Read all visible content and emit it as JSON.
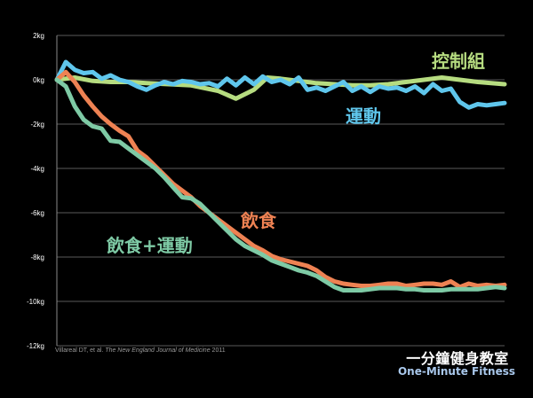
{
  "chart_data": {
    "type": "line",
    "title": "",
    "xlabel": "",
    "ylabel": "",
    "ylim": [
      -12,
      2
    ],
    "y_ticks": [
      2,
      0,
      -2,
      -4,
      -6,
      -8,
      -10,
      -12
    ],
    "y_tick_labels": [
      "2kg",
      "0kg",
      "-2kg",
      "-4kg",
      "-6kg",
      "-8kg",
      "-10kg",
      "-12kg"
    ],
    "xlim": [
      0,
      100
    ],
    "grid": true,
    "legend": "inline labels",
    "series": [
      {
        "name": "控制組",
        "color": "#b6dc80",
        "x": [
          0,
          4,
          8,
          12,
          16,
          20,
          25,
          30,
          36,
          40,
          44,
          47,
          50,
          54,
          58,
          62,
          66,
          70,
          74,
          78,
          82,
          86,
          90,
          94,
          100
        ],
        "y": [
          0,
          0.1,
          -0.05,
          -0.1,
          -0.1,
          -0.15,
          -0.2,
          -0.25,
          -0.5,
          -0.85,
          -0.45,
          0.1,
          0.05,
          -0.05,
          -0.15,
          -0.2,
          -0.25,
          -0.25,
          -0.2,
          -0.1,
          0,
          0.1,
          0,
          -0.1,
          -0.2
        ]
      },
      {
        "name": "運動",
        "color": "#5fc6ec",
        "x": [
          0,
          2,
          4,
          6,
          8,
          10,
          12,
          14,
          16,
          18,
          20,
          22,
          24,
          26,
          28,
          30,
          32,
          34,
          36,
          38,
          40,
          42,
          44,
          46,
          48,
          50,
          52,
          54,
          56,
          58,
          60,
          62,
          64,
          66,
          68,
          70,
          72,
          74,
          76,
          78,
          80,
          82,
          84,
          86,
          88,
          90,
          92,
          94,
          96,
          98,
          100
        ],
        "y": [
          0,
          0.8,
          0.45,
          0.3,
          0.35,
          0.05,
          0.2,
          0.0,
          -0.1,
          -0.3,
          -0.45,
          -0.25,
          -0.1,
          -0.2,
          -0.05,
          -0.1,
          -0.2,
          -0.15,
          -0.3,
          0.05,
          -0.25,
          0.1,
          -0.2,
          0.15,
          -0.1,
          0.0,
          -0.2,
          0.1,
          -0.45,
          -0.35,
          -0.5,
          -0.3,
          -0.1,
          -0.5,
          -0.3,
          -0.55,
          -0.3,
          -0.4,
          -0.35,
          -0.5,
          -0.3,
          -0.6,
          -0.2,
          -0.5,
          -0.4,
          -1.0,
          -1.25,
          -1.1,
          -1.15,
          -1.1,
          -1.05
        ]
      },
      {
        "name": "飲食",
        "color": "#ee8253",
        "x": [
          0,
          2,
          4,
          6,
          8,
          10,
          12,
          14,
          16,
          18,
          20,
          22,
          24,
          26,
          28,
          30,
          32,
          34,
          36,
          38,
          40,
          42,
          44,
          46,
          48,
          50,
          52,
          54,
          56,
          58,
          60,
          62,
          64,
          66,
          68,
          70,
          72,
          74,
          76,
          78,
          80,
          82,
          84,
          86,
          88,
          90,
          92,
          94,
          96,
          98,
          100
        ],
        "y": [
          0,
          0.35,
          -0.1,
          -0.7,
          -1.2,
          -1.65,
          -2.0,
          -2.3,
          -2.55,
          -3.2,
          -3.5,
          -3.9,
          -4.3,
          -4.7,
          -5.0,
          -5.3,
          -5.7,
          -6.0,
          -6.3,
          -6.6,
          -6.9,
          -7.2,
          -7.5,
          -7.7,
          -7.95,
          -8.1,
          -8.2,
          -8.3,
          -8.4,
          -8.6,
          -8.9,
          -9.1,
          -9.2,
          -9.25,
          -9.3,
          -9.3,
          -9.25,
          -9.2,
          -9.2,
          -9.3,
          -9.25,
          -9.2,
          -9.2,
          -9.25,
          -9.1,
          -9.35,
          -9.2,
          -9.3,
          -9.25,
          -9.3,
          -9.25
        ]
      },
      {
        "name": "飲食+運動",
        "color": "#7ecaa5",
        "x": [
          0,
          2,
          4,
          6,
          8,
          10,
          12,
          14,
          16,
          18,
          20,
          22,
          24,
          26,
          28,
          30,
          32,
          34,
          36,
          38,
          40,
          42,
          44,
          46,
          48,
          50,
          52,
          54,
          56,
          58,
          60,
          62,
          64,
          66,
          68,
          70,
          72,
          74,
          76,
          78,
          80,
          82,
          84,
          86,
          88,
          90,
          92,
          94,
          96,
          98,
          100
        ],
        "y": [
          0,
          -0.3,
          -1.2,
          -1.8,
          -2.1,
          -2.2,
          -2.75,
          -2.8,
          -3.1,
          -3.4,
          -3.7,
          -4.0,
          -4.4,
          -4.85,
          -5.3,
          -5.35,
          -5.6,
          -6.0,
          -6.4,
          -6.8,
          -7.2,
          -7.5,
          -7.7,
          -7.9,
          -8.15,
          -8.3,
          -8.45,
          -8.6,
          -8.7,
          -8.85,
          -9.1,
          -9.35,
          -9.5,
          -9.5,
          -9.5,
          -9.45,
          -9.4,
          -9.4,
          -9.4,
          -9.45,
          -9.45,
          -9.5,
          -9.5,
          -9.5,
          -9.45,
          -9.45,
          -9.45,
          -9.45,
          -9.4,
          -9.35,
          -9.4
        ]
      }
    ],
    "annotation": "Villareal DT, et al."
  },
  "citation": {
    "authors": "Villareal DT, et al.",
    "journal": "The New England Journal of Medicine",
    "year": "2011"
  },
  "brand": {
    "zh": "一分鐘健身教室",
    "en": "One-Minute Fitness"
  }
}
